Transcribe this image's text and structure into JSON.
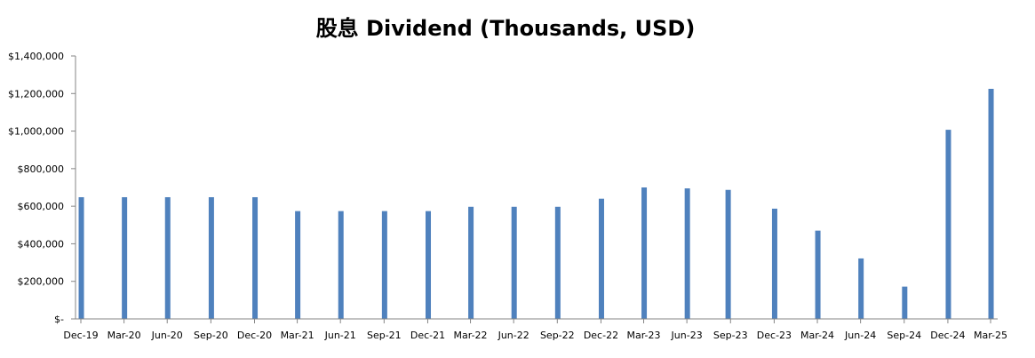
{
  "chart_data": {
    "type": "bar",
    "title": "股息 Dividend (Thousands, USD)",
    "xlabel": "",
    "ylabel": "",
    "ylim": [
      0,
      1400000
    ],
    "grid": false,
    "legend": "none",
    "bar_color": "#4F81BD",
    "y_ticks": [
      0,
      200000,
      400000,
      600000,
      800000,
      1000000,
      1200000,
      1400000
    ],
    "y_tick_labels": [
      "$-",
      "$200,000",
      "$400,000",
      "$600,000",
      "$800,000",
      "$1,000,000",
      "$1,200,000",
      "$1,400,000"
    ],
    "x_tick_dates": [
      "2019-12-31",
      "2020-03-31",
      "2020-06-30",
      "2020-09-30",
      "2020-12-31",
      "2021-03-31",
      "2021-06-30",
      "2021-09-30",
      "2021-12-31",
      "2022-03-31",
      "2022-06-30",
      "2022-09-30",
      "2022-12-31",
      "2023-03-31",
      "2023-06-30",
      "2023-09-30",
      "2023-12-31",
      "2024-03-31",
      "2024-06-30",
      "2024-09-30",
      "2024-12-31",
      "2025-03-31"
    ],
    "x_tick_labels": [
      "Dec-19",
      "Mar-20",
      "Jun-20",
      "Sep-20",
      "Dec-20",
      "Mar-21",
      "Jun-21",
      "Sep-21",
      "Dec-21",
      "Mar-22",
      "Jun-22",
      "Sep-22",
      "Dec-22",
      "Mar-23",
      "Jun-23",
      "Sep-23",
      "Dec-23",
      "Mar-24",
      "Jun-24",
      "Sep-24",
      "Dec-24",
      "Mar-25"
    ],
    "x": [
      "2020-01-01",
      "2020-04-01",
      "2020-07-01",
      "2020-10-01",
      "2021-01-01",
      "2021-04-01",
      "2021-07-01",
      "2021-10-01",
      "2022-01-01",
      "2022-04-01",
      "2022-07-01",
      "2022-10-01",
      "2023-01-01",
      "2023-04-01",
      "2023-07-01",
      "2023-09-25",
      "2024-01-01",
      "2024-04-01",
      "2024-07-01",
      "2024-10-01",
      "2025-01-01",
      "2025-04-01"
    ],
    "values": [
      648000,
      648000,
      648000,
      648000,
      648000,
      574000,
      574000,
      574000,
      574000,
      597000,
      597000,
      597000,
      640000,
      700000,
      695000,
      687000,
      587000,
      470000,
      322000,
      172000,
      1007000,
      1225000
    ]
  }
}
